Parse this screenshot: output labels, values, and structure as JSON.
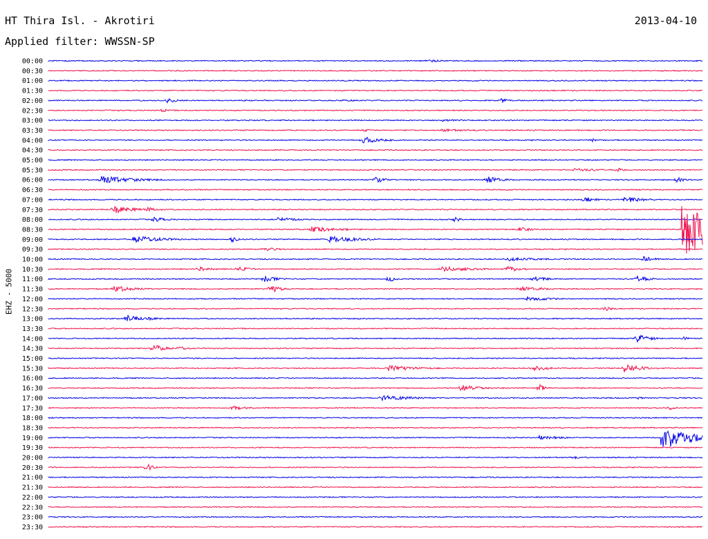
{
  "header": {
    "station": "HT Thira Isl. - Akrotiri",
    "date": "2013-04-10",
    "filter": "Applied filter: WWSSN-SP"
  },
  "chart_data": {
    "type": "line",
    "title": "HT Thira Isl. - Akrotiri",
    "date": "2013-04-10",
    "filter": "WWSSN-SP",
    "channel": "EHZ - 5000",
    "rows": [
      "00:00",
      "00:30",
      "01:00",
      "01:30",
      "02:00",
      "02:30",
      "03:00",
      "03:30",
      "04:00",
      "04:30",
      "05:00",
      "05:30",
      "06:00",
      "06:30",
      "07:00",
      "07:30",
      "08:00",
      "08:30",
      "09:00",
      "09:30",
      "10:00",
      "10:30",
      "11:00",
      "11:30",
      "12:00",
      "12:30",
      "13:00",
      "13:30",
      "14:00",
      "14:30",
      "15:00",
      "15:30",
      "16:00",
      "16:30",
      "17:00",
      "17:30",
      "18:00",
      "18:30",
      "19:00",
      "19:30",
      "20:00",
      "20:30",
      "21:00",
      "21:30",
      "22:00",
      "22:30",
      "23:00",
      "23:30"
    ],
    "row_minutes": 30,
    "trace_colors": [
      "#0000e6",
      "#f0104a"
    ],
    "events": [
      {
        "row": "00:00",
        "t": 0.58,
        "amp": 0.45,
        "dur": 0.02
      },
      {
        "row": "01:00",
        "t": 0.24,
        "amp": 0.3,
        "dur": 0.01
      },
      {
        "row": "02:00",
        "t": 0.18,
        "amp": 0.6,
        "dur": 0.02
      },
      {
        "row": "02:00",
        "t": 0.45,
        "amp": 0.25,
        "dur": 0.05
      },
      {
        "row": "02:00",
        "t": 0.69,
        "amp": 0.55,
        "dur": 0.015
      },
      {
        "row": "02:30",
        "t": 0.17,
        "amp": 0.45,
        "dur": 0.02
      },
      {
        "row": "03:00",
        "t": 0.6,
        "amp": 0.3,
        "dur": 0.04
      },
      {
        "row": "03:30",
        "t": 0.48,
        "amp": 0.4,
        "dur": 0.015
      },
      {
        "row": "03:30",
        "t": 0.6,
        "amp": 0.35,
        "dur": 0.06
      },
      {
        "row": "04:00",
        "t": 0.48,
        "amp": 0.9,
        "dur": 0.03
      },
      {
        "row": "04:00",
        "t": 0.83,
        "amp": 0.45,
        "dur": 0.01
      },
      {
        "row": "05:30",
        "t": 0.8,
        "amp": 0.4,
        "dur": 0.05
      },
      {
        "row": "05:30",
        "t": 0.87,
        "amp": 0.55,
        "dur": 0.015
      },
      {
        "row": "06:00",
        "t": 0.08,
        "amp": 0.9,
        "dur": 0.06
      },
      {
        "row": "06:00",
        "t": 0.5,
        "amp": 0.8,
        "dur": 0.02
      },
      {
        "row": "06:00",
        "t": 0.67,
        "amp": 1.0,
        "dur": 0.02
      },
      {
        "row": "06:00",
        "t": 0.96,
        "amp": 0.75,
        "dur": 0.015
      },
      {
        "row": "07:00",
        "t": 0.82,
        "amp": 0.8,
        "dur": 0.015
      },
      {
        "row": "07:00",
        "t": 0.88,
        "amp": 0.8,
        "dur": 0.03
      },
      {
        "row": "07:30",
        "t": 0.1,
        "amp": 1.0,
        "dur": 0.03
      },
      {
        "row": "07:30",
        "t": 0.15,
        "amp": 0.6,
        "dur": 0.02
      },
      {
        "row": "08:00",
        "t": 0.16,
        "amp": 0.7,
        "dur": 0.02
      },
      {
        "row": "08:00",
        "t": 0.35,
        "amp": 0.6,
        "dur": 0.03
      },
      {
        "row": "08:00",
        "t": 0.62,
        "amp": 0.7,
        "dur": 0.01
      },
      {
        "row": "08:30",
        "t": 0.4,
        "amp": 0.7,
        "dur": 0.05
      },
      {
        "row": "08:30",
        "t": 0.72,
        "amp": 0.8,
        "dur": 0.015
      },
      {
        "row": "09:00",
        "t": 0.13,
        "amp": 1.0,
        "dur": 0.04
      },
      {
        "row": "09:00",
        "t": 0.43,
        "amp": 1.0,
        "dur": 0.04
      },
      {
        "row": "09:00",
        "t": 0.28,
        "amp": 0.8,
        "dur": 0.01
      },
      {
        "row": "09:30",
        "t": 0.33,
        "amp": 0.6,
        "dur": 0.02
      },
      {
        "row": "10:00",
        "t": 0.7,
        "amp": 0.5,
        "dur": 0.06
      },
      {
        "row": "10:00",
        "t": 0.91,
        "amp": 0.8,
        "dur": 0.015
      },
      {
        "row": "10:30",
        "t": 0.23,
        "amp": 0.6,
        "dur": 0.02
      },
      {
        "row": "10:30",
        "t": 0.29,
        "amp": 0.6,
        "dur": 0.02
      },
      {
        "row": "10:30",
        "t": 0.6,
        "amp": 0.7,
        "dur": 0.05
      },
      {
        "row": "10:30",
        "t": 0.7,
        "amp": 0.8,
        "dur": 0.02
      },
      {
        "row": "11:00",
        "t": 0.33,
        "amp": 0.8,
        "dur": 0.02
      },
      {
        "row": "11:00",
        "t": 0.52,
        "amp": 0.9,
        "dur": 0.01
      },
      {
        "row": "11:00",
        "t": 0.74,
        "amp": 0.8,
        "dur": 0.02
      },
      {
        "row": "11:00",
        "t": 0.9,
        "amp": 0.8,
        "dur": 0.02
      },
      {
        "row": "11:30",
        "t": 0.1,
        "amp": 0.8,
        "dur": 0.03
      },
      {
        "row": "11:30",
        "t": 0.34,
        "amp": 1.0,
        "dur": 0.015
      },
      {
        "row": "11:30",
        "t": 0.72,
        "amp": 0.6,
        "dur": 0.04
      },
      {
        "row": "12:00",
        "t": 0.73,
        "amp": 0.5,
        "dur": 0.05
      },
      {
        "row": "12:30",
        "t": 0.85,
        "amp": 0.7,
        "dur": 0.01
      },
      {
        "row": "13:00",
        "t": 0.12,
        "amp": 1.0,
        "dur": 0.02
      },
      {
        "row": "13:00",
        "t": 0.15,
        "amp": 0.5,
        "dur": 0.02
      },
      {
        "row": "14:00",
        "t": 0.9,
        "amp": 1.0,
        "dur": 0.02
      },
      {
        "row": "14:00",
        "t": 0.97,
        "amp": 0.5,
        "dur": 0.01
      },
      {
        "row": "14:30",
        "t": 0.16,
        "amp": 1.0,
        "dur": 0.02
      },
      {
        "row": "14:30",
        "t": 0.2,
        "amp": 0.7,
        "dur": 0.01
      },
      {
        "row": "15:30",
        "t": 0.52,
        "amp": 0.7,
        "dur": 0.05
      },
      {
        "row": "15:30",
        "t": 0.74,
        "amp": 0.9,
        "dur": 0.02
      },
      {
        "row": "15:30",
        "t": 0.88,
        "amp": 1.0,
        "dur": 0.03
      },
      {
        "row": "16:30",
        "t": 0.63,
        "amp": 0.8,
        "dur": 0.03
      },
      {
        "row": "16:30",
        "t": 0.75,
        "amp": 1.0,
        "dur": 0.01
      },
      {
        "row": "17:00",
        "t": 0.51,
        "amp": 0.7,
        "dur": 0.05
      },
      {
        "row": "17:00",
        "t": 0.9,
        "amp": 0.4,
        "dur": 0.01
      },
      {
        "row": "17:30",
        "t": 0.28,
        "amp": 0.5,
        "dur": 0.03
      },
      {
        "row": "17:30",
        "t": 0.95,
        "amp": 0.5,
        "dur": 0.01
      },
      {
        "row": "19:00",
        "t": 0.75,
        "amp": 0.5,
        "dur": 0.04
      },
      {
        "row": "20:00",
        "t": 0.8,
        "amp": 0.5,
        "dur": 0.01
      },
      {
        "row": "20:30",
        "t": 0.15,
        "amp": 1.0,
        "dur": 0.01
      }
    ],
    "large_events": [
      {
        "row": "08:30",
        "t": 0.97,
        "amp_up": 8.5,
        "amp_down": 8.5,
        "dur": 0.04
      },
      {
        "row": "19:00",
        "t": 0.938,
        "amp_up": 2.3,
        "amp_down": 3.0,
        "dur": 0.05
      }
    ]
  }
}
